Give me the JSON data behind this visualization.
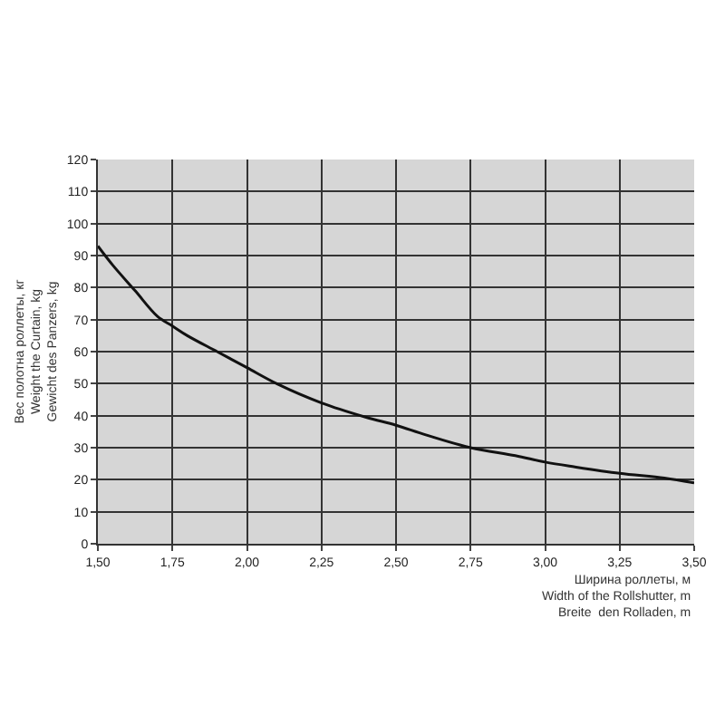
{
  "chart_data": {
    "type": "line",
    "xlabel": "Ширина роллеты, м\nWidth of the Rollshutter, m\nBreite  den Rolladen, m",
    "ylabel": "Вес полотна роллеты, кг\nWeight the Curtain, kg\nGewicht des Panzers, kg",
    "x": [
      1.5,
      1.55,
      1.625,
      1.7,
      1.75,
      1.8,
      1.9,
      2.0,
      2.1,
      2.25,
      2.4,
      2.5,
      2.6,
      2.75,
      2.9,
      3.0,
      3.1,
      3.25,
      3.4,
      3.5
    ],
    "series": [
      {
        "color": "#111111",
        "values": [
          93,
          87,
          79,
          71,
          68,
          65,
          60,
          55,
          50,
          44,
          39.5,
          37,
          34,
          30,
          27.5,
          25.5,
          24,
          22,
          20.5,
          19
        ]
      }
    ],
    "xlim": [
      1.5,
      3.5
    ],
    "ylim": [
      0,
      120
    ],
    "xticks": [
      {
        "value": 1.5,
        "label": "1,50"
      },
      {
        "value": 1.75,
        "label": "1,75"
      },
      {
        "value": 2.0,
        "label": "2,00"
      },
      {
        "value": 2.25,
        "label": "2,25"
      },
      {
        "value": 2.5,
        "label": "2,50"
      },
      {
        "value": 2.75,
        "label": "2,75"
      },
      {
        "value": 3.0,
        "label": "3,00"
      },
      {
        "value": 3.25,
        "label": "3,25"
      },
      {
        "value": 3.5,
        "label": "3,50"
      }
    ],
    "yticks": [
      0,
      10,
      20,
      30,
      40,
      50,
      60,
      70,
      80,
      90,
      100,
      110,
      120
    ],
    "grid": true,
    "legend": false,
    "marker": "none",
    "line_style": "solid"
  }
}
